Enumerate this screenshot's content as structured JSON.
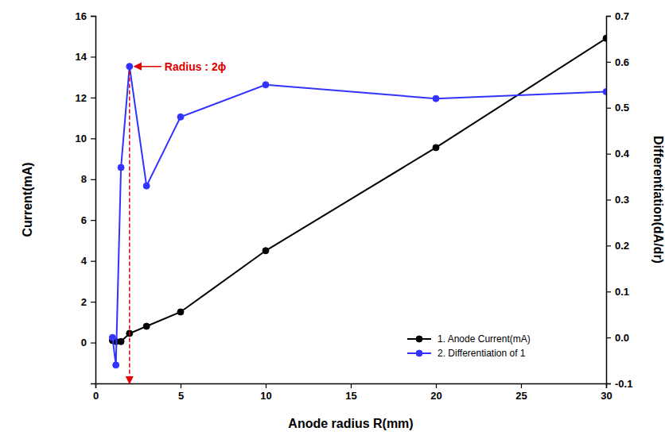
{
  "chart_data": {
    "type": "line",
    "x_label": "Anode radius R(mm)",
    "y_label": "Current(mA)",
    "y2_label": "Differentiation(dA/dr)",
    "x": [
      1,
      1.2,
      1.5,
      2,
      3,
      5,
      10,
      20,
      30
    ],
    "xlim": [
      0,
      30
    ],
    "xticks": [
      0,
      5,
      10,
      15,
      20,
      25,
      30
    ],
    "ylim": [
      -2,
      16
    ],
    "yticks": [
      0,
      2,
      4,
      6,
      8,
      10,
      12,
      14,
      16
    ],
    "y2lim": [
      -0.1,
      0.7
    ],
    "y2ticks": [
      -0.1,
      {
        "value": 0,
        "label": "0.0"
      },
      0.1,
      0.2,
      0.3,
      0.4,
      0.5,
      0.6,
      0.7
    ],
    "series": [
      {
        "name": "1. Anode Current(mA)",
        "color": "#000000",
        "marker": "circle",
        "values": [
          0.1,
          0.05,
          0.05,
          0.45,
          0.8,
          1.5,
          4.5,
          9.55,
          14.9
        ]
      },
      {
        "name": "2. Differentiation of 1",
        "color": "#3333ff",
        "marker": "circle",
        "axis": "y2",
        "values": [
          0.0,
          -0.06,
          0.37,
          0.59,
          0.33,
          0.48,
          0.55,
          0.52,
          0.535
        ]
      }
    ],
    "annotations": [
      {
        "text": "Radius : 2ϕ",
        "x": 2,
        "y": 0.59,
        "axis": "y2"
      }
    ],
    "legend": "lower right",
    "grid": false
  }
}
